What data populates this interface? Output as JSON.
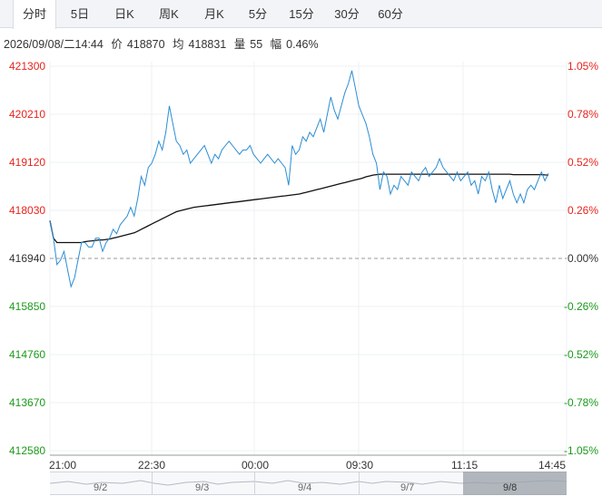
{
  "tabs": [
    "分时",
    "5日",
    "日K",
    "周K",
    "月K",
    "5分",
    "15分",
    "30分",
    "60分"
  ],
  "info": {
    "datetime": "2026/09/08/二14:44",
    "price_label": "价",
    "price": "418870",
    "avg_label": "均",
    "avg": "418831",
    "volume_label": "量",
    "volume": "55",
    "change_label": "幅",
    "change": "0.46%"
  },
  "y_axis_left": [
    "421300",
    "420210",
    "419120",
    "418030",
    "416940",
    "415850",
    "414760",
    "413670",
    "412580"
  ],
  "y_axis_right": [
    "1.05%",
    "0.78%",
    "0.52%",
    "0.26%",
    "0.00%",
    "-0.26%",
    "-0.52%",
    "-0.78%",
    "-1.05%"
  ],
  "x_axis": [
    "21:00",
    "22:30",
    "00:00",
    "09:30",
    "11:15",
    "14:45"
  ],
  "navigator_days": [
    "9/2",
    "9/3",
    "9/4",
    "9/7",
    "9/8"
  ],
  "colors": {
    "up": "#e8231c",
    "down": "#1a9a1a",
    "neutral": "#333333",
    "price_line": "#2a8dd4",
    "avg_line": "#111111",
    "baseline": "#999999"
  },
  "chart_data": {
    "type": "line",
    "base_price": 416940,
    "ylim": [
      412580,
      421300
    ],
    "x_ticks": [
      "21:00",
      "22:30",
      "00:00",
      "09:30",
      "11:15",
      "14:45"
    ],
    "series": [
      {
        "values": [
          417800,
          417400,
          416800,
          416900,
          417100,
          416700,
          416300,
          416500,
          416900,
          417300,
          417300,
          417200,
          417200,
          417400,
          417400,
          417100,
          417300,
          417400,
          417600,
          417500,
          417700,
          417800,
          417900,
          418100,
          417900,
          418300,
          418800,
          418600,
          419000,
          419100,
          419300,
          419600,
          419400,
          419800,
          420400,
          420000,
          419600,
          419500,
          419300,
          419400,
          419100,
          419200,
          419300,
          419400,
          419500,
          419300,
          419100,
          419300,
          419200,
          419400,
          419500,
          419600,
          419500,
          419400,
          419300,
          419400,
          419400,
          419500,
          419300,
          419200,
          419100,
          419200,
          419300,
          419200,
          419100,
          419200,
          419100,
          419000,
          418600,
          419500,
          419300,
          419400,
          419700,
          419600,
          419800,
          419700,
          419900,
          420100,
          419800,
          420200,
          420600,
          420300,
          420100,
          420400,
          420700,
          420900,
          421200,
          420800,
          420400,
          420200,
          420000,
          419700,
          419300,
          419100,
          418500,
          418900,
          418800,
          418400,
          418600,
          418500,
          418800,
          418700,
          418600,
          418900,
          418800,
          418700,
          418900,
          419000,
          418800,
          418900,
          419000,
          419200,
          419000,
          418900,
          418800,
          418700,
          418900,
          418700,
          418800,
          418900,
          418600,
          418700,
          418400,
          418800,
          418700,
          418900,
          418500,
          418200,
          418600,
          418300,
          418500,
          418700,
          418400,
          418200,
          418400,
          418200,
          418500,
          418600,
          418500,
          418700,
          418900,
          418700,
          418870
        ],
        "color": "#2a8dd4"
      },
      {
        "values": [
          417800,
          417400,
          417300,
          417300,
          417300,
          417300,
          417300,
          417300,
          417300,
          417300,
          417320,
          417330,
          417340,
          417350,
          417360,
          417360,
          417370,
          417380,
          417400,
          417420,
          417440,
          417460,
          417480,
          417500,
          417520,
          417560,
          417600,
          417640,
          417680,
          417720,
          417760,
          417800,
          417840,
          417880,
          417920,
          417960,
          418000,
          418020,
          418040,
          418060,
          418080,
          418100,
          418110,
          418120,
          418130,
          418140,
          418150,
          418160,
          418170,
          418180,
          418190,
          418200,
          418210,
          418220,
          418230,
          418240,
          418250,
          418260,
          418270,
          418280,
          418290,
          418300,
          418310,
          418320,
          418330,
          418340,
          418350,
          418360,
          418370,
          418380,
          418390,
          418400,
          418420,
          418440,
          418460,
          418480,
          418500,
          418520,
          418540,
          418560,
          418580,
          418600,
          418620,
          418640,
          418660,
          418680,
          418700,
          418720,
          418740,
          418760,
          418790,
          418810,
          418830,
          418840,
          418850,
          418850,
          418850,
          418850,
          418850,
          418850,
          418850,
          418850,
          418850,
          418850,
          418850,
          418850,
          418850,
          418850,
          418850,
          418850,
          418850,
          418850,
          418850,
          418850,
          418850,
          418850,
          418850,
          418850,
          418850,
          418850,
          418850,
          418850,
          418850,
          418850,
          418850,
          418850,
          418850,
          418850,
          418850,
          418850,
          418850,
          418850,
          418840,
          418840,
          418840,
          418840,
          418840,
          418840,
          418840,
          418840,
          418840,
          418835,
          418831
        ],
        "color": "#111111"
      }
    ]
  }
}
